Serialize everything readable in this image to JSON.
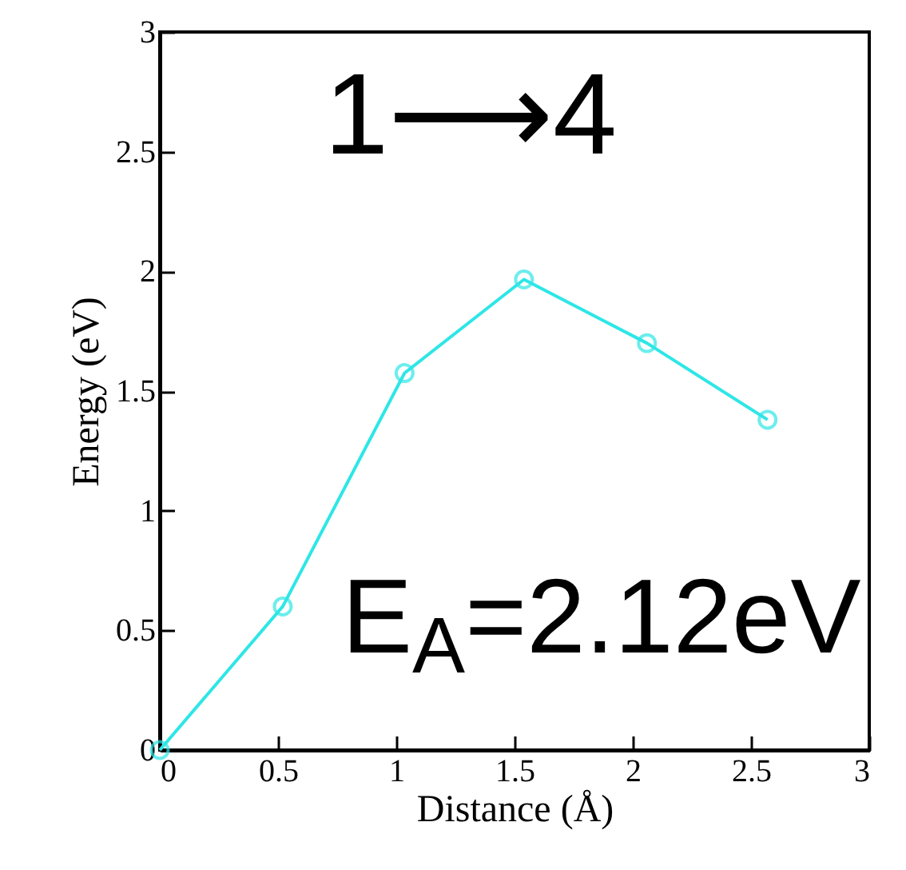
{
  "chart_data": {
    "type": "line",
    "xlabel": "Distance (Å)",
    "ylabel": "Energy (eV)",
    "x": [
      0,
      0.52,
      1.035,
      1.54,
      2.06,
      2.57
    ],
    "series": [
      {
        "color": "#2ee6e6",
        "values": [
          0,
          0.6,
          1.575,
          1.966,
          1.7,
          1.38
        ]
      }
    ],
    "xlim": [
      0,
      3
    ],
    "ylim": [
      0,
      3
    ],
    "xticks": [
      0,
      0.5,
      1,
      1.5,
      2,
      2.5,
      3
    ],
    "yticks": [
      0,
      0.5,
      1,
      1.5,
      2,
      2.5,
      3
    ],
    "marker": "circle",
    "grid": false,
    "annotations": [
      "1⟶4",
      "E$_{A}$=2.12eV"
    ]
  }
}
